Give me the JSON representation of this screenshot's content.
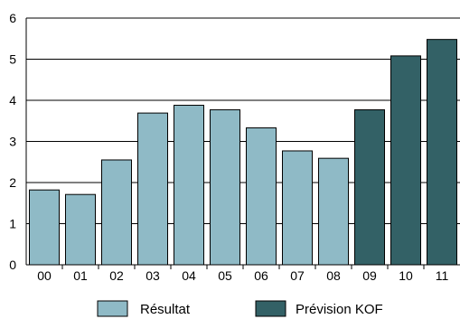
{
  "chart_data": {
    "type": "bar",
    "title": "",
    "xlabel": "",
    "ylabel": "",
    "categories": [
      "00",
      "01",
      "02",
      "03",
      "04",
      "05",
      "06",
      "07",
      "08",
      "09",
      "10",
      "11"
    ],
    "values": [
      1.82,
      1.71,
      2.55,
      3.69,
      3.88,
      3.77,
      3.33,
      2.77,
      2.59,
      3.77,
      5.08,
      5.48
    ],
    "series_assignment": [
      "Résultat",
      "Résultat",
      "Résultat",
      "Résultat",
      "Résultat",
      "Résultat",
      "Résultat",
      "Résultat",
      "Résultat",
      "Prévision KOF",
      "Prévision KOF",
      "Prévision KOF"
    ],
    "ylim": [
      0,
      6
    ],
    "yticks": [
      "0",
      "1",
      "2",
      "3",
      "4",
      "5",
      "6"
    ],
    "grid": true,
    "legend_position": "bottom",
    "legend": [
      {
        "name": "Résultat",
        "color": "#8fbac6"
      },
      {
        "name": "Prévision KOF",
        "color": "#336166"
      }
    ]
  }
}
